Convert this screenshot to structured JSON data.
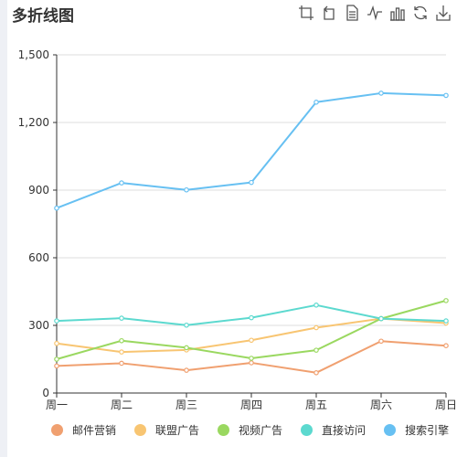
{
  "title": "多折线图",
  "toolbox": [
    {
      "name": "zoom-icon"
    },
    {
      "name": "zoom-reset-icon"
    },
    {
      "name": "data-view-icon"
    },
    {
      "name": "line-type-icon"
    },
    {
      "name": "bar-type-icon"
    },
    {
      "name": "restore-icon"
    },
    {
      "name": "save-image-icon"
    }
  ],
  "chart_data": {
    "type": "line",
    "title": "多折线图",
    "categories": [
      "周一",
      "周二",
      "周三",
      "周四",
      "周五",
      "周六",
      "周日"
    ],
    "ylim": [
      0,
      1500
    ],
    "yticks": [
      "0",
      "300",
      "600",
      "900",
      "1,200",
      "1,500"
    ],
    "grid": true,
    "legend_position": "bottom",
    "series": [
      {
        "name": "邮件营销",
        "color": "#f0a070",
        "values": [
          120,
          132,
          101,
          134,
          90,
          230,
          210
        ]
      },
      {
        "name": "联盟广告",
        "color": "#f8c572",
        "values": [
          220,
          182,
          191,
          234,
          290,
          330,
          310
        ]
      },
      {
        "name": "视频广告",
        "color": "#9ad860",
        "values": [
          150,
          232,
          201,
          154,
          190,
          330,
          410
        ]
      },
      {
        "name": "直接访问",
        "color": "#5cd9cf",
        "values": [
          320,
          332,
          301,
          334,
          390,
          330,
          320
        ]
      },
      {
        "name": "搜索引擎",
        "color": "#67c0f2",
        "values": [
          820,
          932,
          901,
          934,
          1290,
          1330,
          1320
        ]
      }
    ]
  }
}
